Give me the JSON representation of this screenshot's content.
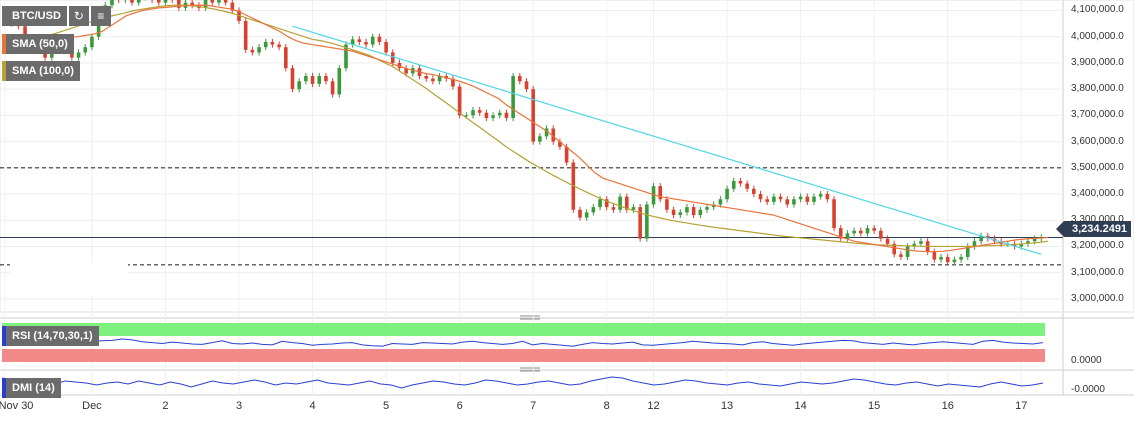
{
  "toolbar": {
    "symbol": "BTC/USD",
    "sma50_label": "SMA (50,0)",
    "sma100_label": "SMA (100,0)",
    "rsi_label": "RSI (14,70,30,1)",
    "dmi_label": "DMI (14)",
    "refresh_icon": "refresh-icon",
    "bars_icon": "bar-chart-icon"
  },
  "current_price": "3,234.2491",
  "colors": {
    "candle_up": "#3a9a3a",
    "candle_down": "#d9412f",
    "sma50": "#e8743b",
    "sma100": "#b5a134",
    "trendline": "#4fd6e6",
    "rsi_line": "#2a3fd1",
    "dmi_line": "#2a3fd1",
    "rsi_over": "#7df07d",
    "rsi_under": "#f28a8a",
    "price_line": "#2e3f55"
  },
  "chart_data": {
    "type": "line",
    "title": "BTC/USD",
    "y_ticks": [
      "4,100,000.0",
      "4,000,000.0",
      "3,900,000.0",
      "3,800,000.0",
      "3,700,000.0",
      "3,600,000.0",
      "3,500,000.0",
      "3,400,000.0",
      "3,300,000.0",
      "3,200,000.0",
      "3,100,000.0",
      "3,000,000.0"
    ],
    "y_tick_values": [
      4100,
      4000,
      3900,
      3800,
      3700,
      3600,
      3500,
      3400,
      3300,
      3200,
      3100,
      3000
    ],
    "ylim": [
      2950,
      4140
    ],
    "x_ticks": [
      "Nov 30",
      "Dec",
      "2",
      "3",
      "4",
      "5",
      "6",
      "7",
      "8",
      "12",
      "13",
      "14",
      "15",
      "16",
      "17"
    ],
    "x_tick_index": [
      0,
      13,
      24,
      35,
      46,
      57,
      68,
      79,
      90,
      97,
      108,
      119,
      130,
      141,
      152
    ],
    "xlim": [
      0,
      156
    ],
    "horizontal_levels": [
      3500,
      3130
    ],
    "current_price": 3234.25,
    "price_series": [
      4060,
      4050,
      4040,
      3980,
      3970,
      3950,
      3920,
      3960,
      3990,
      3960,
      3920,
      3940,
      3960,
      4000,
      4060,
      4120,
      4150,
      4140,
      4160,
      4130,
      4150,
      4160,
      4140,
      4130,
      4150,
      4140,
      4110,
      4130,
      4120,
      4110,
      4140,
      4130,
      4150,
      4130,
      4100,
      4060,
      3950,
      3940,
      3960,
      3980,
      3970,
      3960,
      3880,
      3800,
      3830,
      3850,
      3820,
      3850,
      3830,
      3780,
      3880,
      3970,
      3990,
      3980,
      3970,
      4000,
      3980,
      3940,
      3900,
      3880,
      3860,
      3880,
      3850,
      3840,
      3830,
      3850,
      3840,
      3810,
      3700,
      3700,
      3720,
      3710,
      3690,
      3700,
      3710,
      3690,
      3850,
      3830,
      3800,
      3600,
      3620,
      3650,
      3600,
      3580,
      3520,
      3340,
      3310,
      3330,
      3350,
      3380,
      3350,
      3340,
      3390,
      3340,
      3350,
      3230,
      3360,
      3430,
      3380,
      3340,
      3320,
      3330,
      3350,
      3320,
      3340,
      3350,
      3360,
      3380,
      3420,
      3450,
      3440,
      3420,
      3400,
      3380,
      3370,
      3390,
      3380,
      3360,
      3380,
      3390,
      3370,
      3390,
      3400,
      3380,
      3270,
      3230,
      3250,
      3260,
      3250,
      3270,
      3260,
      3230,
      3210,
      3170,
      3160,
      3200,
      3210,
      3220,
      3180,
      3150,
      3160,
      3140,
      3150,
      3160,
      3200,
      3220,
      3240,
      3230,
      3220,
      3210,
      3210,
      3200,
      3210,
      3220,
      3230,
      3234
    ],
    "sma50_series": [
      4000,
      3990,
      3990,
      3990,
      3995,
      3995,
      3995,
      3995,
      3998,
      4000,
      4005,
      4010,
      4020,
      4040,
      4060,
      4080,
      4090,
      4100,
      4105,
      4110,
      4112,
      4115,
      4118,
      4120,
      4120,
      4120,
      4115,
      4110,
      4105,
      4095,
      4080,
      4065,
      4050,
      4035,
      4020,
      4000,
      3985,
      3975,
      3970,
      3965,
      3960,
      3955,
      3950,
      3945,
      3935,
      3925,
      3915,
      3905,
      3895,
      3885,
      3875,
      3868,
      3860,
      3855,
      3848,
      3840,
      3832,
      3822,
      3810,
      3795,
      3780,
      3765,
      3740,
      3720,
      3700,
      3680,
      3660,
      3640,
      3615,
      3590,
      3565,
      3540,
      3510,
      3480,
      3460,
      3450,
      3440,
      3430,
      3420,
      3410,
      3400,
      3390,
      3385,
      3380,
      3375,
      3370,
      3365,
      3360,
      3355,
      3350,
      3345,
      3340,
      3335,
      3330,
      3325,
      3320,
      3310,
      3300,
      3290,
      3280,
      3270,
      3260,
      3250,
      3240,
      3230,
      3220,
      3215,
      3210,
      3205,
      3200,
      3195,
      3190,
      3185,
      3182,
      3180,
      3180,
      3182,
      3185,
      3190,
      3195,
      3200,
      3205,
      3210,
      3215,
      3220,
      3225,
      3228,
      3230,
      3232,
      3234
    ],
    "sma100_series": [
      3975,
      3982,
      3988,
      3995,
      4000,
      4005,
      4010,
      4020,
      4030,
      4040,
      4050,
      4060,
      4070,
      4078,
      4085,
      4092,
      4100,
      4105,
      4110,
      4115,
      4118,
      4120,
      4120,
      4118,
      4115,
      4110,
      4105,
      4098,
      4090,
      4080,
      4070,
      4060,
      4050,
      4040,
      4030,
      4020,
      4010,
      4000,
      3990,
      3985,
      3978,
      3970,
      3960,
      3950,
      3940,
      3930,
      3915,
      3900,
      3885,
      3865,
      3845,
      3825,
      3805,
      3782,
      3760,
      3738,
      3715,
      3692,
      3670,
      3648,
      3625,
      3603,
      3580,
      3560,
      3540,
      3520,
      3503,
      3485,
      3468,
      3452,
      3436,
      3421,
      3406,
      3392,
      3378,
      3366,
      3355,
      3344,
      3334,
      3324,
      3316,
      3309,
      3302,
      3296,
      3291,
      3286,
      3281,
      3276,
      3272,
      3268,
      3264,
      3260,
      3256,
      3252,
      3248,
      3244,
      3240,
      3237,
      3234,
      3231,
      3228,
      3225,
      3222,
      3219,
      3216,
      3213,
      3210,
      3208,
      3206,
      3205,
      3204,
      3203,
      3202,
      3201,
      3200,
      3200,
      3200,
      3200,
      3200,
      3200,
      3201,
      3202,
      3203,
      3204,
      3206,
      3208,
      3210,
      3213,
      3216,
      3220
    ],
    "trendline": {
      "start": [
        43,
        4040
      ],
      "end": [
        155,
        3170
      ]
    },
    "rsi_series": [
      52,
      50,
      48,
      55,
      47,
      49,
      50,
      51,
      53,
      55,
      56,
      57,
      60,
      58,
      54,
      52,
      50,
      53,
      51,
      49,
      48,
      52,
      56,
      50,
      49,
      51,
      48,
      47,
      55,
      52,
      50,
      46,
      48,
      49,
      51,
      52,
      47,
      45,
      44,
      50,
      49,
      48,
      52,
      51,
      50,
      49,
      53,
      55,
      52,
      50,
      48,
      50,
      55,
      47,
      50,
      48,
      46,
      44,
      48,
      52,
      50,
      49,
      51,
      53,
      47,
      46,
      48,
      50,
      52,
      55,
      53,
      51,
      50,
      49,
      47,
      52,
      54,
      50,
      48,
      46,
      49,
      51,
      53,
      55,
      57,
      56,
      52,
      50,
      48,
      51,
      49,
      47,
      50,
      52,
      54,
      52,
      50,
      48,
      55,
      57,
      53,
      51,
      50,
      49,
      52
    ],
    "dmi_series": [
      0.8,
      0.6,
      0.3,
      0.1,
      -0.2,
      0.2,
      0.5,
      0.4,
      0.3,
      0.1,
      0.3,
      0.4,
      0.2,
      0.5,
      0.3,
      0.1,
      0.4,
      0.2,
      -0.1,
      0.2,
      0.5,
      0.3,
      0.2,
      0.4,
      0.6,
      0.4,
      0.1,
      0.3,
      0.2,
      0.4,
      0.6,
      0.3,
      0.2,
      0.1,
      0.3,
      0.5,
      0.2,
      0.1,
      -0.2,
      0.1,
      0.3,
      0.5,
      0.4,
      0.2,
      0.1,
      0.3,
      0.6,
      0.5,
      0.3,
      0.1,
      0.2,
      0.4,
      0.5,
      0.3,
      0.1,
      0.2,
      0.5,
      0.7,
      0.9,
      0.8,
      0.5,
      0.3,
      0.1,
      0.2,
      0.4,
      0.6,
      0.5,
      0.3,
      0.2,
      0.1,
      0.3,
      0.4,
      0.2,
      0.1,
      0.0,
      0.2,
      0.4,
      0.3,
      0.2,
      0.3,
      0.5,
      0.7,
      0.6,
      0.4,
      0.2,
      0.1,
      0.3,
      0.4,
      0.2,
      0.0,
      0.2,
      0.1,
      0.0,
      -0.1,
      0.2,
      0.4,
      0.2,
      0.0,
      0.1,
      0.3
    ],
    "rsi_axis_label": "0.0000",
    "dmi_axis_label": "-0.0000"
  }
}
